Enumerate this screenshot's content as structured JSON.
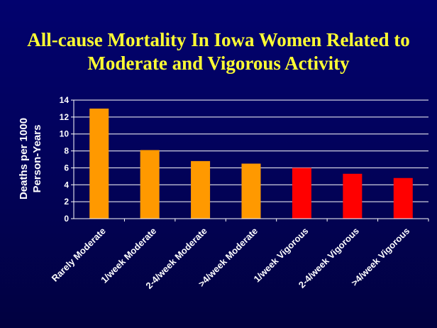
{
  "title": {
    "line1": "All-cause Mortality In Iowa Women Related to",
    "line2": "Moderate and Vigorous Activity"
  },
  "chart_data": {
    "type": "bar",
    "title": "All-cause Mortality In Iowa Women Related to Moderate and Vigorous Activity",
    "xlabel": "",
    "ylabel_lines": [
      "Deaths per 1000",
      "Person-Years"
    ],
    "ylim": [
      0,
      14
    ],
    "yticks": [
      0,
      2,
      4,
      6,
      8,
      10,
      12,
      14
    ],
    "grid": true,
    "legend": "none",
    "categories": [
      "Rarely Moderate",
      "1/week Moderate",
      "2-4/week Moderate",
      ">4/week Moderate",
      "1/week Vigorous",
      "2-4/week Vigorous",
      ">4/week Vigorous"
    ],
    "values": [
      13.0,
      8.1,
      6.8,
      6.5,
      6.0,
      5.3,
      4.8
    ],
    "bar_colors": [
      "#ff9900",
      "#ff9900",
      "#ff9900",
      "#ff9900",
      "#ff0000",
      "#ff0000",
      "#ff0000"
    ]
  },
  "colors": {
    "background": "#020268",
    "title": "#ffff33",
    "axis_text": "#ffffff",
    "grid": "#ffffff"
  }
}
